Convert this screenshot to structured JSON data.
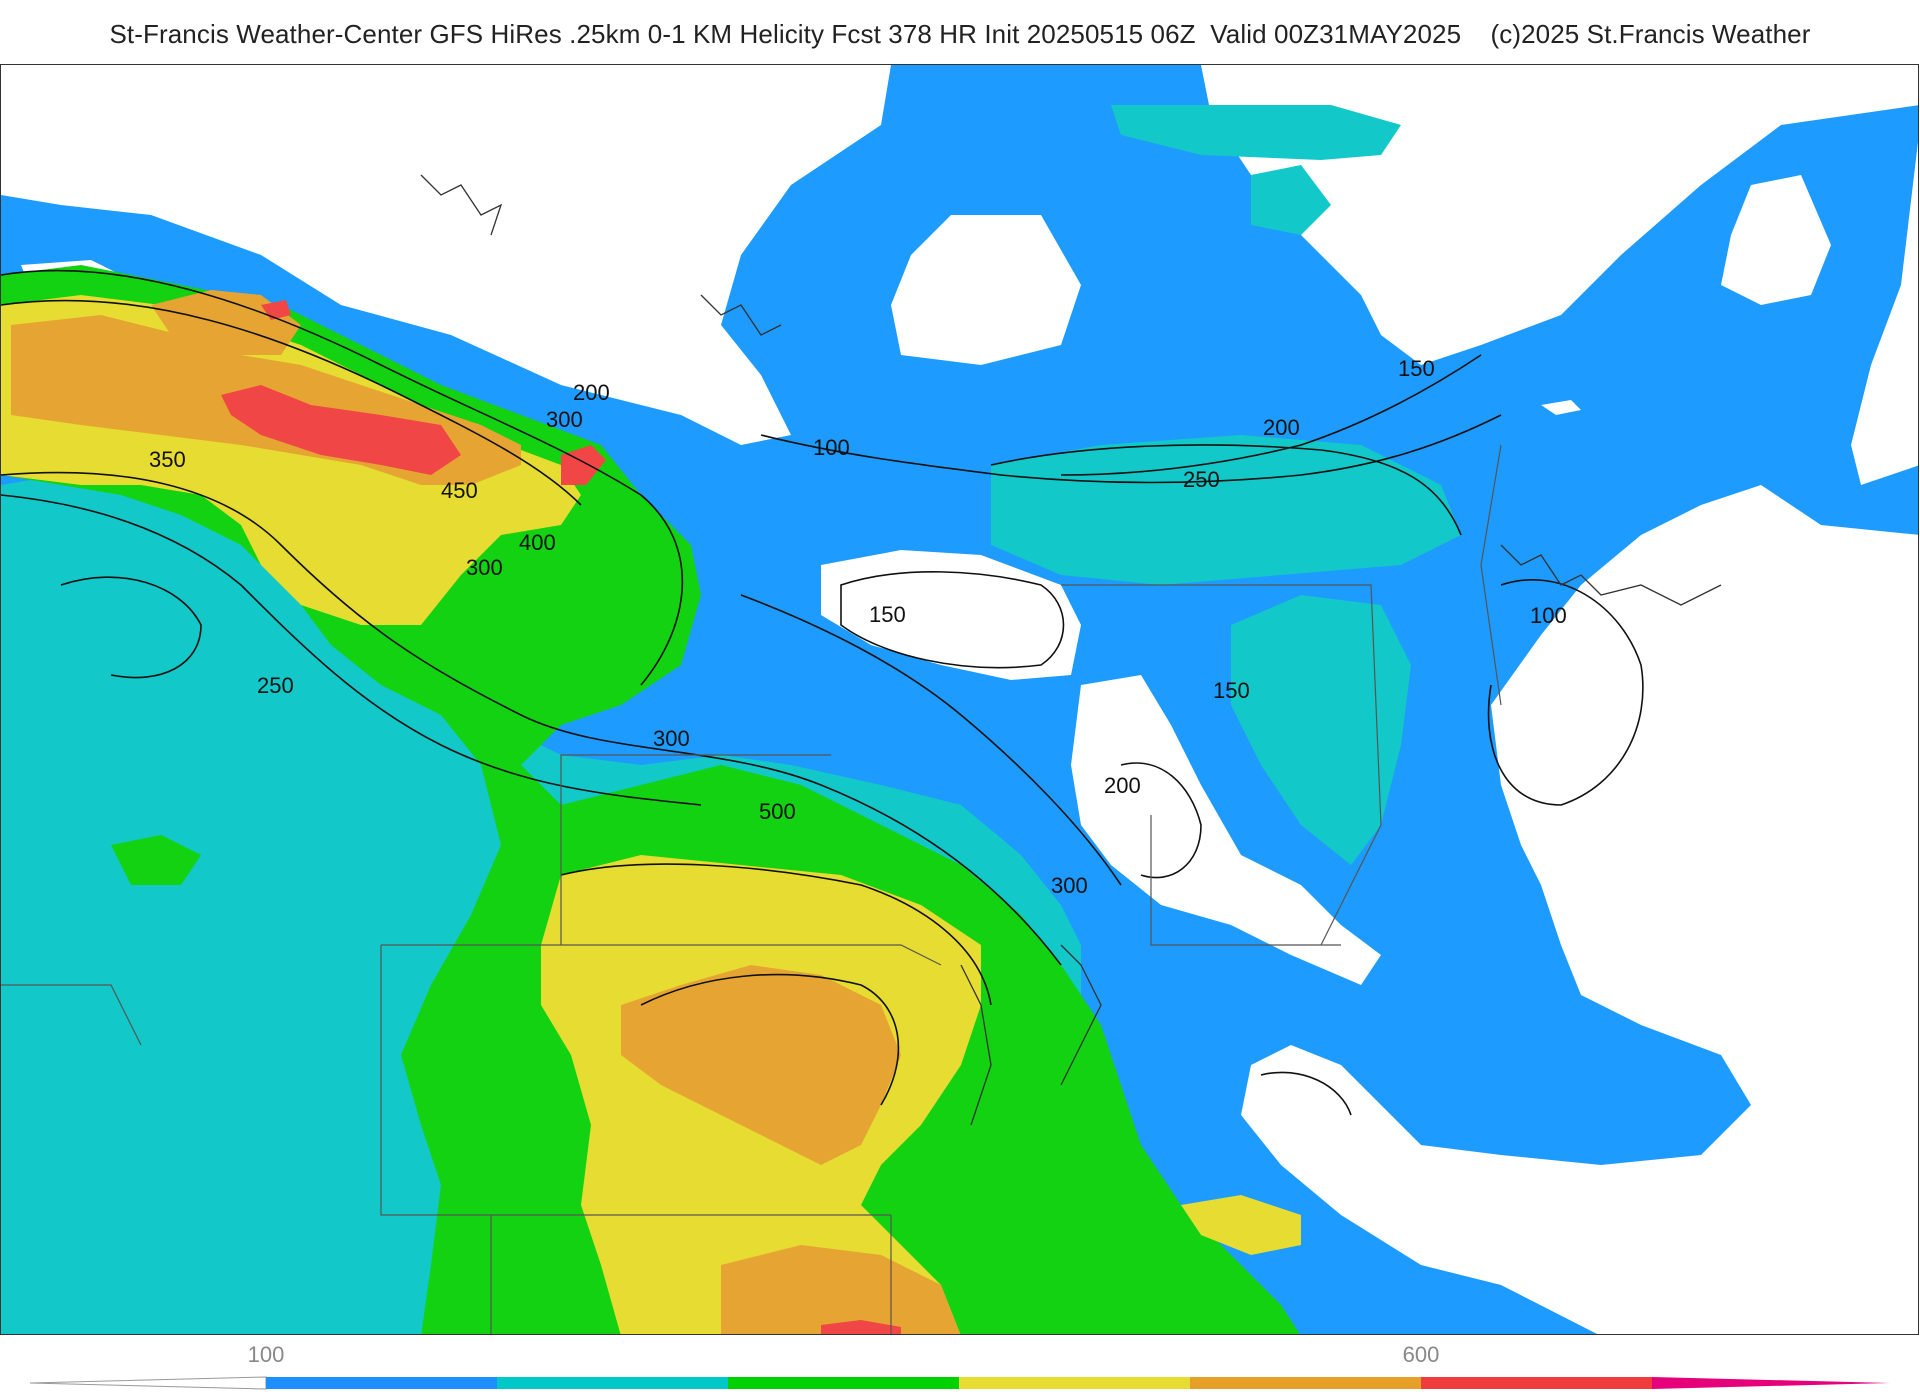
{
  "header": {
    "title": "St-Francis Weather-Center GFS HiRes .25km 0-1 KM Helicity Fcst 378 HR Init 20250515 06Z  Valid 00Z31MAY2025    (c)2025 St.Francis Weather"
  },
  "legend": {
    "tick_low": "100",
    "tick_high": "600",
    "colors": [
      "#ffffff",
      "#1e8fff",
      "#00c8c8",
      "#00d200",
      "#e6dc32",
      "#e6a028",
      "#f03c3c",
      "#e6007a"
    ]
  },
  "palette": {
    "white": "#ffffff",
    "blue": "#1e9bff",
    "teal": "#12c8c8",
    "green": "#12d212",
    "yellow": "#e6dc32",
    "orange": "#e6a532",
    "red": "#f04646",
    "contour": "#111111",
    "border": "#555555"
  },
  "contour_labels": [
    {
      "text": "200",
      "id": "l200a"
    },
    {
      "text": "300",
      "id": "l300a"
    },
    {
      "text": "350",
      "id": "l350"
    },
    {
      "text": "450",
      "id": "l450"
    },
    {
      "text": "400",
      "id": "l400"
    },
    {
      "text": "300",
      "id": "l300b"
    },
    {
      "text": "100",
      "id": "l100a"
    },
    {
      "text": "150",
      "id": "l150a"
    },
    {
      "text": "200",
      "id": "l200b"
    },
    {
      "text": "250",
      "id": "l250a"
    },
    {
      "text": "150",
      "id": "l150b"
    },
    {
      "text": "250",
      "id": "l250b"
    },
    {
      "text": "300",
      "id": "l300c"
    },
    {
      "text": "500",
      "id": "l500"
    },
    {
      "text": "150",
      "id": "l150c"
    },
    {
      "text": "200",
      "id": "l200c"
    },
    {
      "text": "300",
      "id": "l300d"
    },
    {
      "text": "100",
      "id": "l100b"
    }
  ]
}
